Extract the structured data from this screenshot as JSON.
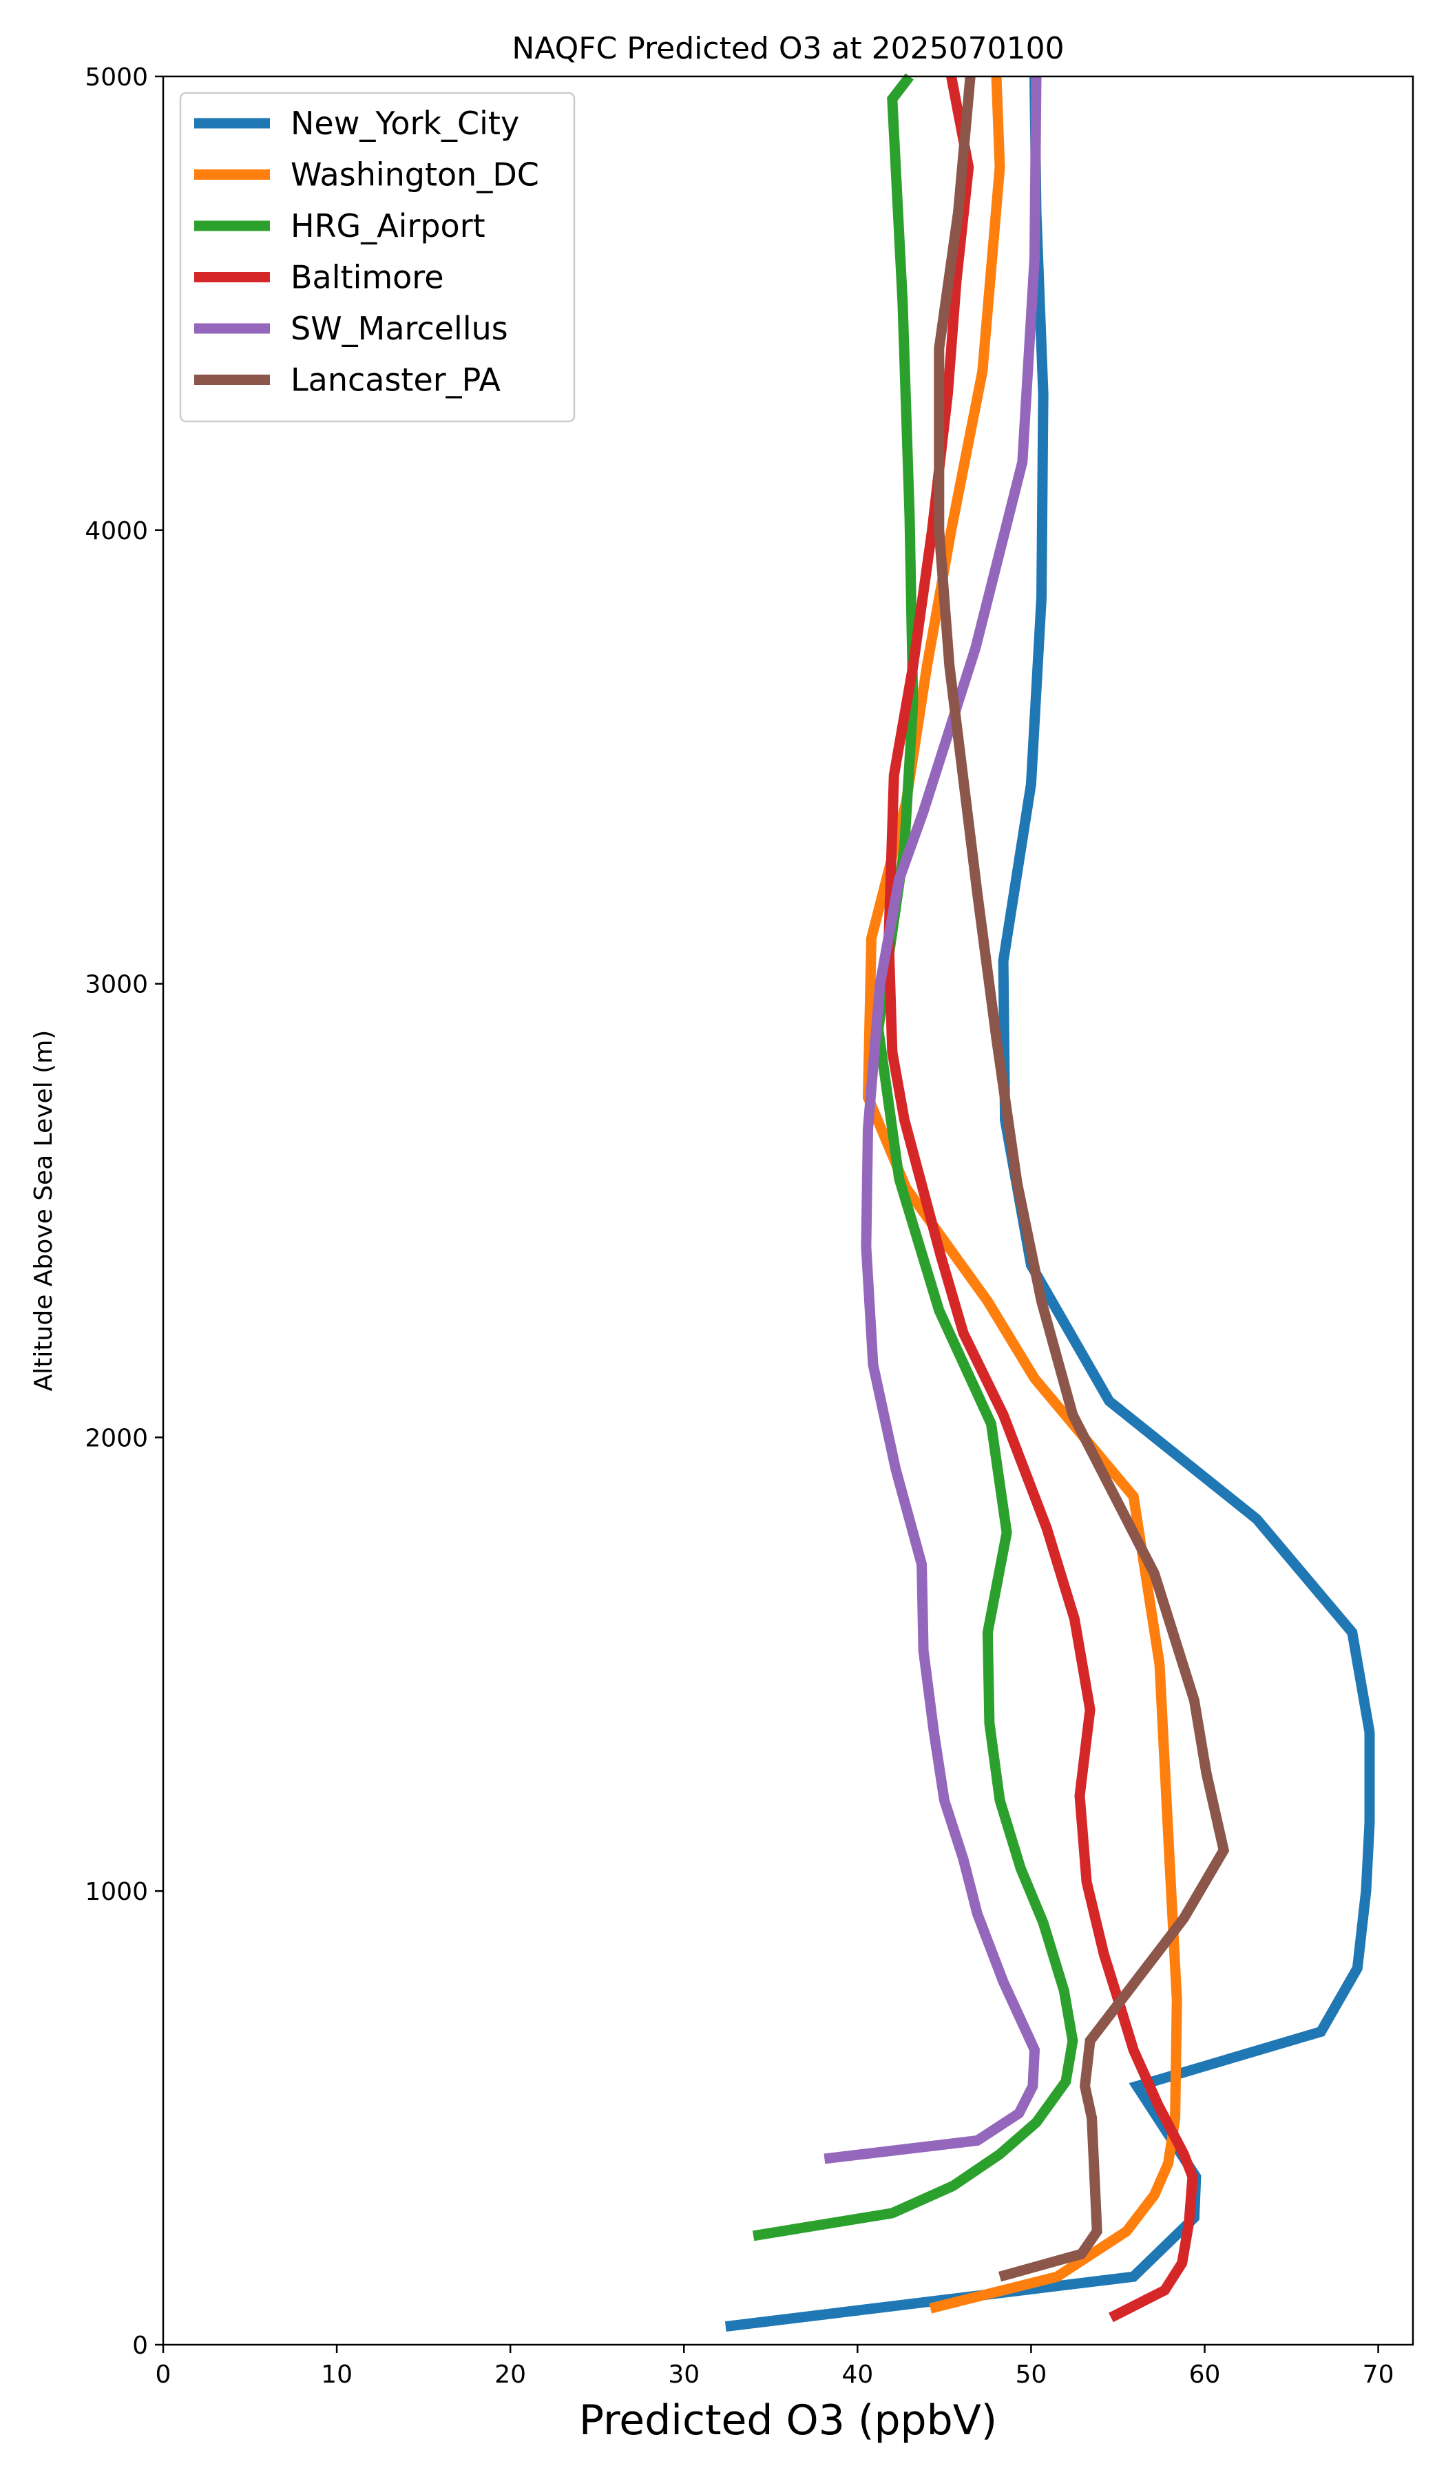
{
  "chart_data": {
    "type": "line",
    "title": "NAQFC Predicted O3 at 2025070100",
    "xlabel": "Predicted O3 (ppbV)",
    "ylabel": "Altitude Above Sea Level (m)",
    "xlim": [
      0,
      72
    ],
    "ylim": [
      0,
      5000
    ],
    "xticks": [
      0,
      10,
      20,
      30,
      40,
      50,
      60,
      70
    ],
    "yticks": [
      0,
      1000,
      2000,
      3000,
      4000,
      5000
    ],
    "grid": false,
    "legend_position": "top-left",
    "series": [
      {
        "name": "New_York_City",
        "color": "#1f77b4",
        "points": [
          [
            32.4,
            40
          ],
          [
            55.9,
            150
          ],
          [
            59.4,
            280
          ],
          [
            59.5,
            370
          ],
          [
            56.1,
            570
          ],
          [
            66.7,
            690
          ],
          [
            68.8,
            830
          ],
          [
            69.3,
            1000
          ],
          [
            69.5,
            1150
          ],
          [
            69.5,
            1350
          ],
          [
            68.5,
            1570
          ],
          [
            63.0,
            1820
          ],
          [
            54.5,
            2080
          ],
          [
            50.0,
            2380
          ],
          [
            48.5,
            2700
          ],
          [
            48.4,
            3050
          ],
          [
            50.0,
            3440
          ],
          [
            50.6,
            3850
          ],
          [
            50.7,
            4300
          ],
          [
            50.3,
            4700
          ],
          [
            50.2,
            5000
          ]
        ]
      },
      {
        "name": "Washington_DC",
        "color": "#ff7f0e",
        "points": [
          [
            44.2,
            80
          ],
          [
            51.5,
            150
          ],
          [
            55.5,
            250
          ],
          [
            57.1,
            330
          ],
          [
            57.9,
            400
          ],
          [
            58.3,
            500
          ],
          [
            58.4,
            760
          ],
          [
            58.0,
            1050
          ],
          [
            57.4,
            1500
          ],
          [
            55.9,
            1870
          ],
          [
            50.2,
            2130
          ],
          [
            47.5,
            2300
          ],
          [
            42.8,
            2550
          ],
          [
            40.6,
            2750
          ],
          [
            40.8,
            3100
          ],
          [
            42.8,
            3400
          ],
          [
            44.0,
            3700
          ],
          [
            45.4,
            4000
          ],
          [
            47.2,
            4350
          ],
          [
            48.2,
            4800
          ],
          [
            48.0,
            5000
          ]
        ]
      },
      {
        "name": "HRG_Airport",
        "color": "#2ca02c",
        "points": [
          [
            34.0,
            240
          ],
          [
            42.0,
            290
          ],
          [
            45.5,
            350
          ],
          [
            48.2,
            420
          ],
          [
            50.3,
            490
          ],
          [
            52.0,
            580
          ],
          [
            52.4,
            670
          ],
          [
            51.9,
            780
          ],
          [
            50.7,
            930
          ],
          [
            49.4,
            1050
          ],
          [
            48.2,
            1200
          ],
          [
            47.6,
            1370
          ],
          [
            47.5,
            1570
          ],
          [
            48.6,
            1790
          ],
          [
            47.7,
            2030
          ],
          [
            44.7,
            2280
          ],
          [
            42.4,
            2570
          ],
          [
            41.2,
            2900
          ],
          [
            42.7,
            3300
          ],
          [
            43.2,
            3620
          ],
          [
            43.0,
            4030
          ],
          [
            42.6,
            4500
          ],
          [
            42.0,
            4950
          ],
          [
            43.0,
            5000
          ]
        ]
      },
      {
        "name": "Baltimore",
        "color": "#d62728",
        "points": [
          [
            54.6,
            60
          ],
          [
            57.7,
            120
          ],
          [
            58.7,
            180
          ],
          [
            59.1,
            270
          ],
          [
            59.3,
            370
          ],
          [
            58.8,
            420
          ],
          [
            57.3,
            530
          ],
          [
            55.9,
            650
          ],
          [
            55.1,
            750
          ],
          [
            54.2,
            860
          ],
          [
            53.2,
            1020
          ],
          [
            52.8,
            1210
          ],
          [
            53.4,
            1400
          ],
          [
            52.5,
            1600
          ],
          [
            50.9,
            1800
          ],
          [
            48.4,
            2050
          ],
          [
            46.1,
            2230
          ],
          [
            44.8,
            2400
          ],
          [
            42.7,
            2700
          ],
          [
            42.0,
            2850
          ],
          [
            41.8,
            3100
          ],
          [
            42.1,
            3460
          ],
          [
            43.2,
            3700
          ],
          [
            44.3,
            4000
          ],
          [
            45.2,
            4300
          ],
          [
            45.7,
            4550
          ],
          [
            46.4,
            4800
          ],
          [
            45.4,
            5000
          ]
        ]
      },
      {
        "name": "SW_Marcellus",
        "color": "#9467bd",
        "points": [
          [
            38.1,
            410
          ],
          [
            46.9,
            450
          ],
          [
            49.3,
            510
          ],
          [
            50.1,
            570
          ],
          [
            50.2,
            650
          ],
          [
            48.4,
            800
          ],
          [
            46.9,
            950
          ],
          [
            46.1,
            1070
          ],
          [
            45.0,
            1200
          ],
          [
            44.4,
            1350
          ],
          [
            43.8,
            1530
          ],
          [
            43.7,
            1720
          ],
          [
            42.2,
            1930
          ],
          [
            40.9,
            2160
          ],
          [
            40.5,
            2420
          ],
          [
            40.6,
            2680
          ],
          [
            41.3,
            3000
          ],
          [
            42.4,
            3230
          ],
          [
            43.8,
            3380
          ],
          [
            46.8,
            3740
          ],
          [
            49.5,
            4150
          ],
          [
            50.2,
            4600
          ],
          [
            50.3,
            5000
          ]
        ]
      },
      {
        "name": "Lancaster_PA",
        "color": "#8c564b",
        "points": [
          [
            48.2,
            150
          ],
          [
            52.9,
            200
          ],
          [
            53.8,
            250
          ],
          [
            53.5,
            500
          ],
          [
            53.1,
            570
          ],
          [
            53.4,
            670
          ],
          [
            55.0,
            750
          ],
          [
            58.8,
            940
          ],
          [
            61.1,
            1090
          ],
          [
            60.1,
            1260
          ],
          [
            59.4,
            1420
          ],
          [
            57.1,
            1700
          ],
          [
            52.4,
            2050
          ],
          [
            50.6,
            2300
          ],
          [
            49.2,
            2560
          ],
          [
            48.0,
            2880
          ],
          [
            46.9,
            3200
          ],
          [
            45.3,
            3700
          ],
          [
            44.7,
            4000
          ],
          [
            44.7,
            4400
          ],
          [
            45.8,
            4700
          ],
          [
            46.5,
            5000
          ]
        ]
      }
    ]
  }
}
